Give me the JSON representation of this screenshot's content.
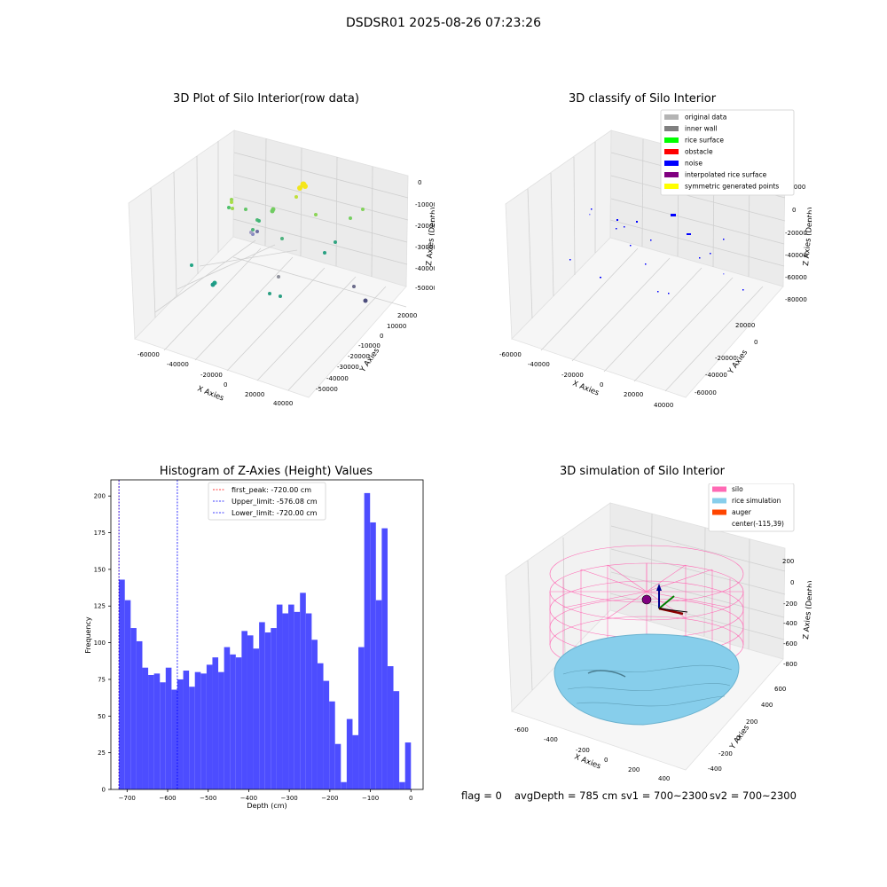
{
  "suptitle": "DSDSR01 2025-08-26 07:23:26",
  "panels": {
    "raw": {
      "title": "3D Plot of Silo Interior(row data)",
      "xlabel": "X Axies",
      "ylabel": "Y Axies",
      "zlabel": "Z Axies (Depth)",
      "xticks": [
        "-60000",
        "-40000",
        "-20000",
        "0",
        "20000",
        "40000"
      ],
      "yticks": [
        "20000",
        "10000",
        "0",
        "-10000",
        "-20000",
        "-30000",
        "-40000",
        "-50000"
      ],
      "zticks": [
        "0",
        "-10000",
        "-20000",
        "-30000",
        "-40000",
        "-50000"
      ]
    },
    "classify": {
      "title": "3D classify of Silo Interior",
      "xlabel": "X Axies",
      "ylabel": "Y Axies",
      "zlabel": "Z Axies (Depth)",
      "xticks": [
        "-60000",
        "-40000",
        "-20000",
        "0",
        "20000",
        "40000"
      ],
      "yticks": [
        "20000",
        "0",
        "-20000",
        "-40000",
        "-60000"
      ],
      "zticks": [
        "20000",
        "0",
        "-20000",
        "-40000",
        "-60000",
        "-80000"
      ],
      "legend": [
        {
          "label": "original data",
          "color": "#b4b4b4"
        },
        {
          "label": "inner wall",
          "color": "#808080"
        },
        {
          "label": "rice surface",
          "color": "#00ff00"
        },
        {
          "label": "obstacle",
          "color": "#ff0000"
        },
        {
          "label": "noise",
          "color": "#0000ff"
        },
        {
          "label": "interpolated rice surface",
          "color": "#800080"
        },
        {
          "label": "symmetric generated points",
          "color": "#ffff00"
        }
      ]
    },
    "simulation": {
      "title": "3D simulation of Silo Interior",
      "xlabel": "X Axies",
      "ylabel": "Y Axies",
      "zlabel": "Z Axies (Depth)",
      "xticks": [
        "-600",
        "-400",
        "-200",
        "0",
        "200",
        "400"
      ],
      "yticks": [
        "600",
        "400",
        "200",
        "0",
        "-200",
        "-400"
      ],
      "zticks": [
        "200",
        "0",
        "-200",
        "-400",
        "-600",
        "-800"
      ],
      "legend": [
        {
          "label": "silo",
          "color": "#ff69b4"
        },
        {
          "label": "rice simulation",
          "color": "#87ceeb"
        },
        {
          "label": "auger",
          "color": "#ff4500"
        },
        {
          "label": "center(-115,39)",
          "color": ""
        }
      ]
    }
  },
  "chart_data": {
    "type": "bar",
    "title": "Histogram of Z-Axies (Height) Values",
    "xlabel": "Depth (cm)",
    "ylabel": "Frequency",
    "xlim": [
      -740,
      30
    ],
    "ylim": [
      0,
      211
    ],
    "bin_start": -720,
    "bin_width": 14.4,
    "values": [
      143,
      129,
      110,
      101,
      83,
      78,
      79,
      73,
      83,
      68,
      75,
      81,
      70,
      80,
      79,
      85,
      90,
      80,
      97,
      92,
      90,
      108,
      105,
      96,
      114,
      107,
      110,
      126,
      120,
      126,
      121,
      134,
      120,
      102,
      86,
      74,
      60,
      31,
      5,
      48,
      37,
      97,
      202,
      182,
      129,
      178,
      84,
      67,
      5,
      32
    ],
    "xticks": [
      -700,
      -600,
      -500,
      -400,
      -300,
      -200,
      -100,
      0
    ],
    "yticks": [
      0,
      25,
      50,
      75,
      100,
      125,
      150,
      175,
      200
    ],
    "bar_color": "#4d4dff",
    "lines": [
      {
        "label": "first_peak: -720.00 cm",
        "x": -720,
        "color": "#ff0000"
      },
      {
        "label": "Upper_limit: -576.08 cm",
        "x": -576.08,
        "color": "#0000ff"
      },
      {
        "label": "Lower_limit: -720.00 cm",
        "x": -720,
        "color": "#0000ff"
      }
    ]
  },
  "footer": {
    "flag": "flag = 0",
    "avg": "avgDepth = 785 cm",
    "sv1": "sv1 = 700~2300",
    "sv2": "sv2 = 700~2300"
  }
}
